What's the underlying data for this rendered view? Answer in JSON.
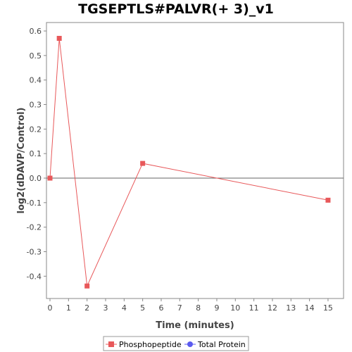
{
  "chart_data": {
    "type": "line",
    "title": "TGSEPTLS#PALVR(+ 3)_v1",
    "xlabel": "Time (minutes)",
    "ylabel": "log2(dDAVP/Control)",
    "xlim": [
      0,
      16
    ],
    "ylim": [
      -0.5,
      0.63
    ],
    "x_ticks": [
      0,
      1,
      2,
      3,
      4,
      5,
      6,
      7,
      8,
      9,
      10,
      11,
      12,
      13,
      14,
      15
    ],
    "y_ticks": [
      -0.4,
      -0.3,
      -0.2,
      -0.1,
      0.0,
      0.1,
      0.2,
      0.3,
      0.4,
      0.5,
      0.6
    ],
    "y_tick_labels": [
      "-0.4",
      "-0.3",
      "-0.2",
      "-0.1",
      "0.0",
      "0.1",
      "0.2",
      "0.3",
      "0.4",
      "0.5",
      "0.6"
    ],
    "series": [
      {
        "name": "Phosphopeptide",
        "color": "#e8585a",
        "marker": "square",
        "x": [
          0,
          0.5,
          2,
          5,
          15
        ],
        "y": [
          0.0,
          0.57,
          -0.44,
          0.06,
          -0.09
        ]
      }
    ],
    "legend": {
      "position": "bottom",
      "entries": [
        {
          "name": "Phosphopeptide",
          "color": "#e8585a",
          "marker": "square"
        },
        {
          "name": "Total Protein",
          "color": "#5b5bf0",
          "marker": "circle"
        }
      ]
    },
    "zero_line": true,
    "grid": false
  }
}
